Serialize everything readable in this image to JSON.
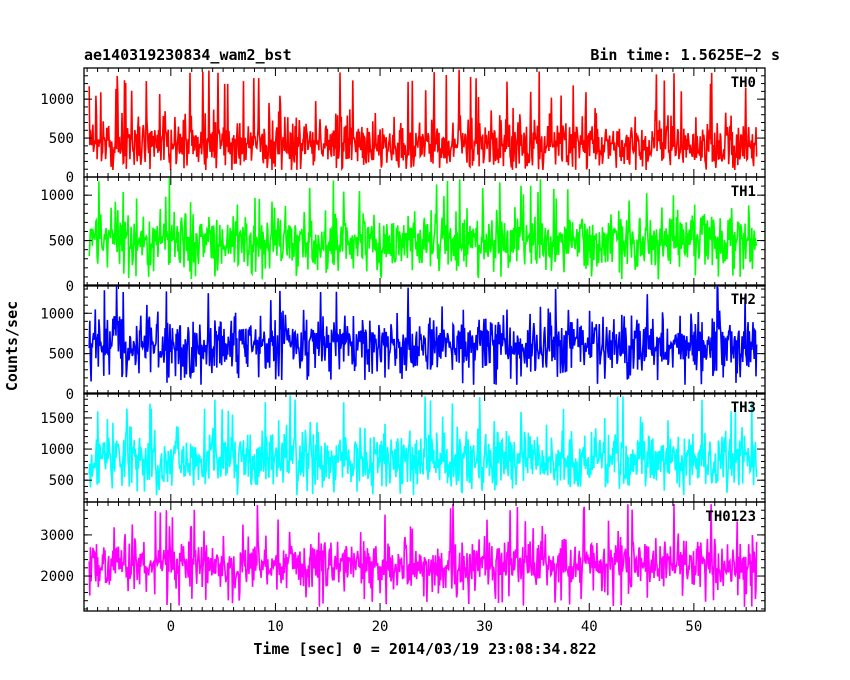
{
  "chart_data": {
    "type": "line",
    "title_left": "ae140319230834_wam2_bst",
    "title_right": "Bin time: 1.5625E−2 s",
    "xlabel": "Time [sec] 0 = 2014/03/19 23:08:34.822",
    "ylabel": "Counts/sec",
    "xlim": [
      -8.3,
      56.8
    ],
    "x_ticks": [
      0,
      10,
      20,
      30,
      40,
      50
    ],
    "x_ticks_minor": 1,
    "series_x_range": [
      -7.8,
      56.0
    ],
    "grid": false,
    "panels": [
      {
        "label": "TH0",
        "color": "#ff0000",
        "ylim": [
          0,
          1400
        ],
        "ticks": [
          0,
          500,
          1000
        ],
        "baseline": 430,
        "spread": 190,
        "floor": 90,
        "top": 1380,
        "seed": 11
      },
      {
        "label": "TH1",
        "color": "#00ff00",
        "ylim": [
          0,
          1200
        ],
        "ticks": [
          0,
          500,
          1000
        ],
        "baseline": 500,
        "spread": 170,
        "floor": 70,
        "top": 1190,
        "seed": 23
      },
      {
        "label": "TH2",
        "color": "#0000ff",
        "ylim": [
          0,
          1350
        ],
        "ticks": [
          0,
          500,
          1000
        ],
        "baseline": 620,
        "spread": 200,
        "floor": 110,
        "top": 1340,
        "seed": 37
      },
      {
        "label": "TH3",
        "color": "#00ffff",
        "ylim": [
          150,
          1900
        ],
        "ticks": [
          500,
          1000,
          1500
        ],
        "baseline": 850,
        "spread": 260,
        "floor": 260,
        "top": 1890,
        "seed": 41
      },
      {
        "label": "TH0123",
        "color": "#ff00ff",
        "ylim": [
          1150,
          3800
        ],
        "ticks": [
          2000,
          3000
        ],
        "baseline": 2300,
        "spread": 330,
        "floor": 1250,
        "top": 3780,
        "seed": 53
      }
    ]
  }
}
